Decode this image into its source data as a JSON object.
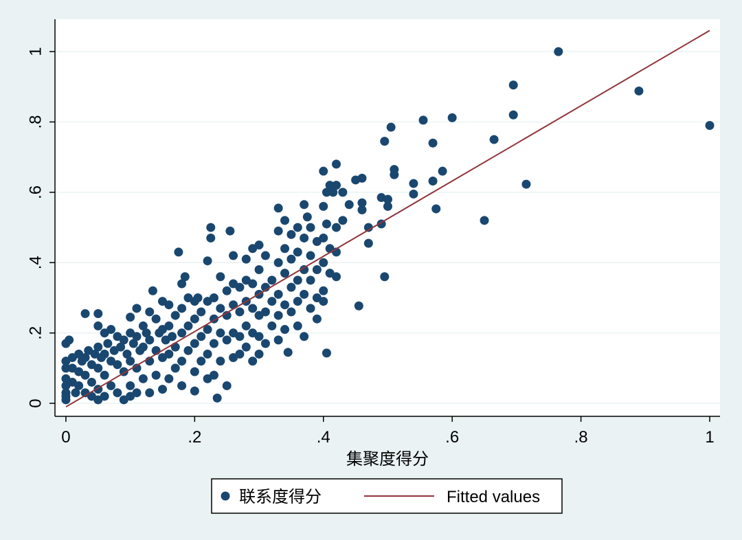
{
  "chart_data": {
    "type": "scatter",
    "title": "",
    "xlabel": "集聚度得分",
    "ylabel": "",
    "xlim": [
      -0.017,
      1.016
    ],
    "ylim": [
      -0.037,
      1.092
    ],
    "x_ticks": [
      0,
      0.2,
      0.4,
      0.6,
      0.8,
      1
    ],
    "x_tick_labels": [
      "0",
      ".2",
      ".4",
      ".6",
      ".8",
      "1"
    ],
    "y_ticks": [
      0,
      0.2,
      0.4,
      0.6,
      0.8,
      1
    ],
    "y_tick_labels": [
      "0",
      ".2",
      ".4",
      ".6",
      ".8",
      "1"
    ],
    "grid": "horizontal",
    "legend_placement": "bottom",
    "colors": {
      "points": "#1a476f",
      "fit": "#90353b",
      "background": "#eaf2f3",
      "plot": "#ffffff"
    },
    "series": [
      {
        "name": "联系度得分",
        "type": "scatter",
        "points": [
          [
            0.0,
            0.17
          ],
          [
            0.0,
            0.12
          ],
          [
            0.0,
            0.1
          ],
          [
            0.0,
            0.07
          ],
          [
            0.0,
            0.05
          ],
          [
            0.0,
            0.03
          ],
          [
            0.0,
            0.02
          ],
          [
            0.0,
            0.01
          ],
          [
            0.005,
            0.18
          ],
          [
            0.01,
            0.13
          ],
          [
            0.01,
            0.1
          ],
          [
            0.01,
            0.06
          ],
          [
            0.015,
            0.03
          ],
          [
            0.02,
            0.14
          ],
          [
            0.02,
            0.09
          ],
          [
            0.02,
            0.05
          ],
          [
            0.025,
            0.12
          ],
          [
            0.03,
            0.255
          ],
          [
            0.03,
            0.13
          ],
          [
            0.03,
            0.08
          ],
          [
            0.03,
            0.03
          ],
          [
            0.035,
            0.15
          ],
          [
            0.04,
            0.11
          ],
          [
            0.04,
            0.06
          ],
          [
            0.04,
            0.02
          ],
          [
            0.045,
            0.14
          ],
          [
            0.05,
            0.255
          ],
          [
            0.05,
            0.22
          ],
          [
            0.05,
            0.16
          ],
          [
            0.05,
            0.1
          ],
          [
            0.05,
            0.04
          ],
          [
            0.05,
            0.01
          ],
          [
            0.055,
            0.13
          ],
          [
            0.06,
            0.2
          ],
          [
            0.06,
            0.14
          ],
          [
            0.06,
            0.08
          ],
          [
            0.06,
            0.02
          ],
          [
            0.065,
            0.17
          ],
          [
            0.07,
            0.21
          ],
          [
            0.07,
            0.12
          ],
          [
            0.07,
            0.05
          ],
          [
            0.075,
            0.15
          ],
          [
            0.08,
            0.19
          ],
          [
            0.08,
            0.11
          ],
          [
            0.08,
            0.03
          ],
          [
            0.085,
            0.16
          ],
          [
            0.09,
            0.18
          ],
          [
            0.09,
            0.09
          ],
          [
            0.09,
            0.01
          ],
          [
            0.095,
            0.14
          ],
          [
            0.1,
            0.245
          ],
          [
            0.1,
            0.2
          ],
          [
            0.1,
            0.12
          ],
          [
            0.1,
            0.05
          ],
          [
            0.1,
            0.02
          ],
          [
            0.105,
            0.17
          ],
          [
            0.11,
            0.27
          ],
          [
            0.11,
            0.19
          ],
          [
            0.11,
            0.1
          ],
          [
            0.11,
            0.03
          ],
          [
            0.115,
            0.15
          ],
          [
            0.12,
            0.22
          ],
          [
            0.12,
            0.16
          ],
          [
            0.12,
            0.07
          ],
          [
            0.125,
            0.2
          ],
          [
            0.13,
            0.26
          ],
          [
            0.13,
            0.18
          ],
          [
            0.13,
            0.12
          ],
          [
            0.13,
            0.03
          ],
          [
            0.135,
            0.32
          ],
          [
            0.14,
            0.24
          ],
          [
            0.14,
            0.15
          ],
          [
            0.14,
            0.08
          ],
          [
            0.145,
            0.2
          ],
          [
            0.15,
            0.29
          ],
          [
            0.15,
            0.21
          ],
          [
            0.15,
            0.13
          ],
          [
            0.15,
            0.04
          ],
          [
            0.155,
            0.18
          ],
          [
            0.16,
            0.28
          ],
          [
            0.16,
            0.22
          ],
          [
            0.16,
            0.14
          ],
          [
            0.16,
            0.07
          ],
          [
            0.165,
            0.19
          ],
          [
            0.17,
            0.25
          ],
          [
            0.17,
            0.16
          ],
          [
            0.17,
            0.1
          ],
          [
            0.175,
            0.43
          ],
          [
            0.18,
            0.34
          ],
          [
            0.18,
            0.27
          ],
          [
            0.18,
            0.2
          ],
          [
            0.18,
            0.12
          ],
          [
            0.18,
            0.05
          ],
          [
            0.185,
            0.36
          ],
          [
            0.19,
            0.3
          ],
          [
            0.19,
            0.22
          ],
          [
            0.19,
            0.15
          ],
          [
            0.2,
            0.29
          ],
          [
            0.2,
            0.24
          ],
          [
            0.2,
            0.17
          ],
          [
            0.2,
            0.09
          ],
          [
            0.2,
            0.035
          ],
          [
            0.205,
            0.3
          ],
          [
            0.21,
            0.26
          ],
          [
            0.21,
            0.19
          ],
          [
            0.21,
            0.12
          ],
          [
            0.22,
            0.405
          ],
          [
            0.22,
            0.29
          ],
          [
            0.22,
            0.21
          ],
          [
            0.22,
            0.14
          ],
          [
            0.22,
            0.07
          ],
          [
            0.225,
            0.5
          ],
          [
            0.225,
            0.47
          ],
          [
            0.23,
            0.3
          ],
          [
            0.23,
            0.24
          ],
          [
            0.23,
            0.17
          ],
          [
            0.23,
            0.08
          ],
          [
            0.235,
            0.015
          ],
          [
            0.24,
            0.36
          ],
          [
            0.24,
            0.27
          ],
          [
            0.24,
            0.2
          ],
          [
            0.24,
            0.12
          ],
          [
            0.25,
            0.32
          ],
          [
            0.25,
            0.25
          ],
          [
            0.25,
            0.18
          ],
          [
            0.25,
            0.05
          ],
          [
            0.255,
            0.49
          ],
          [
            0.26,
            0.42
          ],
          [
            0.26,
            0.34
          ],
          [
            0.26,
            0.28
          ],
          [
            0.26,
            0.2
          ],
          [
            0.26,
            0.13
          ],
          [
            0.27,
            0.33
          ],
          [
            0.27,
            0.26
          ],
          [
            0.27,
            0.19
          ],
          [
            0.27,
            0.14
          ],
          [
            0.28,
            0.41
          ],
          [
            0.28,
            0.35
          ],
          [
            0.28,
            0.29
          ],
          [
            0.28,
            0.22
          ],
          [
            0.28,
            0.16
          ],
          [
            0.29,
            0.44
          ],
          [
            0.29,
            0.34
          ],
          [
            0.29,
            0.27
          ],
          [
            0.29,
            0.2
          ],
          [
            0.29,
            0.12
          ],
          [
            0.3,
            0.45
          ],
          [
            0.3,
            0.38
          ],
          [
            0.3,
            0.31
          ],
          [
            0.3,
            0.25
          ],
          [
            0.3,
            0.19
          ],
          [
            0.3,
            0.14
          ],
          [
            0.31,
            0.42
          ],
          [
            0.31,
            0.33
          ],
          [
            0.31,
            0.26
          ],
          [
            0.31,
            0.17
          ],
          [
            0.32,
            0.35
          ],
          [
            0.32,
            0.29
          ],
          [
            0.32,
            0.22
          ],
          [
            0.33,
            0.555
          ],
          [
            0.33,
            0.49
          ],
          [
            0.33,
            0.4
          ],
          [
            0.33,
            0.31
          ],
          [
            0.33,
            0.25
          ],
          [
            0.33,
            0.18
          ],
          [
            0.34,
            0.52
          ],
          [
            0.34,
            0.44
          ],
          [
            0.34,
            0.37
          ],
          [
            0.34,
            0.28
          ],
          [
            0.34,
            0.21
          ],
          [
            0.345,
            0.145
          ],
          [
            0.35,
            0.48
          ],
          [
            0.35,
            0.41
          ],
          [
            0.35,
            0.33
          ],
          [
            0.35,
            0.26
          ],
          [
            0.36,
            0.5
          ],
          [
            0.36,
            0.43
          ],
          [
            0.36,
            0.35
          ],
          [
            0.36,
            0.29
          ],
          [
            0.36,
            0.22
          ],
          [
            0.37,
            0.565
          ],
          [
            0.37,
            0.47
          ],
          [
            0.37,
            0.38
          ],
          [
            0.37,
            0.31
          ],
          [
            0.37,
            0.19
          ],
          [
            0.375,
            0.53
          ],
          [
            0.38,
            0.5
          ],
          [
            0.38,
            0.42
          ],
          [
            0.38,
            0.35
          ],
          [
            0.38,
            0.27
          ],
          [
            0.39,
            0.46
          ],
          [
            0.39,
            0.38
          ],
          [
            0.39,
            0.3
          ],
          [
            0.39,
            0.24
          ],
          [
            0.4,
            0.66
          ],
          [
            0.4,
            0.56
          ],
          [
            0.4,
            0.47
          ],
          [
            0.4,
            0.4
          ],
          [
            0.4,
            0.32
          ],
          [
            0.4,
            0.29
          ],
          [
            0.405,
            0.6
          ],
          [
            0.405,
            0.51
          ],
          [
            0.405,
            0.143
          ],
          [
            0.41,
            0.62
          ],
          [
            0.41,
            0.44
          ],
          [
            0.41,
            0.37
          ],
          [
            0.415,
            0.6
          ],
          [
            0.42,
            0.68
          ],
          [
            0.42,
            0.62
          ],
          [
            0.42,
            0.5
          ],
          [
            0.42,
            0.43
          ],
          [
            0.42,
            0.36
          ],
          [
            0.43,
            0.6
          ],
          [
            0.43,
            0.52
          ],
          [
            0.44,
            0.565
          ],
          [
            0.45,
            0.635
          ],
          [
            0.46,
            0.57
          ],
          [
            0.46,
            0.64
          ],
          [
            0.46,
            0.55
          ],
          [
            0.455,
            0.277
          ],
          [
            0.47,
            0.5
          ],
          [
            0.47,
            0.455
          ],
          [
            0.49,
            0.51
          ],
          [
            0.49,
            0.585
          ],
          [
            0.495,
            0.745
          ],
          [
            0.495,
            0.36
          ],
          [
            0.5,
            0.58
          ],
          [
            0.5,
            0.56
          ],
          [
            0.505,
            0.785
          ],
          [
            0.51,
            0.65
          ],
          [
            0.51,
            0.665
          ],
          [
            0.54,
            0.595
          ],
          [
            0.54,
            0.625
          ],
          [
            0.555,
            0.805
          ],
          [
            0.57,
            0.74
          ],
          [
            0.57,
            0.632
          ],
          [
            0.575,
            0.553
          ],
          [
            0.585,
            0.66
          ],
          [
            0.6,
            0.812
          ],
          [
            0.65,
            0.52
          ],
          [
            0.665,
            0.75
          ],
          [
            0.695,
            0.905
          ],
          [
            0.695,
            0.82
          ],
          [
            0.715,
            0.623
          ],
          [
            0.765,
            1.0
          ],
          [
            0.89,
            0.888
          ],
          [
            1.0,
            0.79
          ]
        ]
      },
      {
        "name": "Fitted values",
        "type": "line",
        "points": [
          [
            0.0,
            -0.01
          ],
          [
            1.0,
            1.06
          ]
        ]
      }
    ]
  }
}
